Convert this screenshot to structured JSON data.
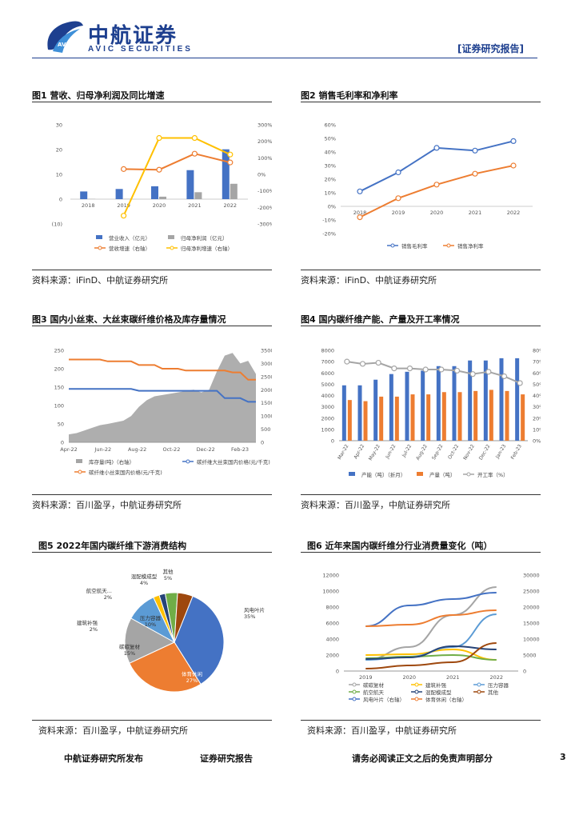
{
  "header": {
    "logo_cn": "中航证券",
    "logo_en": "AVIC SECURITIES",
    "logo_emblem": "AVIC",
    "report_type": "[证券研究报告]"
  },
  "figures": [
    {
      "title": "图1 营收、归母净利润及同比增速",
      "source": "资料来源：iFinD、中航证券研究所"
    },
    {
      "title": "图2 销售毛利率和净利率",
      "source": "资料来源：iFinD、中航证券研究所"
    },
    {
      "title": "图3 国内小丝束、大丝束碳纤维价格及库存量情况",
      "source": "资料来源：百川盈孚，中航证券研究所"
    },
    {
      "title": "图4 国内碳纤维产能、产量及开工率情况",
      "source": "资料来源：百川盈孚，中航证券研究所"
    },
    {
      "title": "图5 2022年国内碳纤维下游消费结构",
      "source": "资料来源：百川盈孚，中航证券研究所"
    },
    {
      "title": "图6 近年来国内碳纤维分行业消费量变化（吨）",
      "source": "资料来源：百川盈孚，中航证券研究所"
    }
  ],
  "footer": {
    "left": "中航证券研究所发布",
    "middle": "证券研究报告",
    "right": "请务必阅读正文之后的免责声明部分",
    "page": "3"
  },
  "chart_data": [
    {
      "type": "bar",
      "categories": [
        "2018",
        "2019",
        "2020",
        "2021",
        "2022"
      ],
      "series": [
        {
          "name": "营业收入（亿元）",
          "values": [
            3.1,
            4.1,
            5.2,
            11.7,
            20.1
          ],
          "color": "#4472c4"
        },
        {
          "name": "归母净利润（亿元）",
          "values": [
            0.1,
            0.1,
            1.0,
            2.8,
            6.2
          ],
          "color": "#a5a5a5"
        },
        {
          "name": "营收增速（右轴）",
          "values": [
            null,
            32,
            28,
            125,
            72
          ],
          "color": "#ed7d31",
          "axis": "right"
        },
        {
          "name": "归母净利增速（右轴）",
          "values": [
            null,
            -250,
            220,
            220,
            120
          ],
          "color": "#ffc000",
          "axis": "right"
        }
      ],
      "y_ticks": [
        "30",
        "20",
        "10",
        "0",
        "(10)"
      ],
      "y2_ticks": [
        "300%",
        "200%",
        "100%",
        "0%",
        "-100%",
        "-200%",
        "-300%"
      ],
      "ylim": [
        -10,
        30
      ],
      "y2lim": [
        -300,
        300
      ]
    },
    {
      "type": "line",
      "categories": [
        "2018",
        "2019",
        "2020",
        "2021",
        "2022"
      ],
      "series": [
        {
          "name": "销售毛利率",
          "values": [
            11,
            25,
            43,
            41,
            48
          ],
          "color": "#4472c4"
        },
        {
          "name": "销售净利率",
          "values": [
            -8,
            6,
            16,
            24,
            30
          ],
          "color": "#ed7d31"
        }
      ],
      "y_ticks": [
        "60%",
        "50%",
        "40%",
        "30%",
        "20%",
        "10%",
        "0%",
        "-10%",
        "-20%"
      ],
      "ylim": [
        -20,
        60
      ]
    },
    {
      "type": "area",
      "x_ticks": [
        "Apr-22",
        "Jun-22",
        "Aug-22",
        "Oct-22",
        "Dec-22",
        "Feb-23"
      ],
      "series": [
        {
          "name": "库存量(吨)（右轴）",
          "values": [
            300,
            350,
            450,
            550,
            650,
            700,
            760,
            820,
            1000,
            1350,
            1600,
            1750,
            1800,
            1850,
            1900,
            1950,
            2000,
            1900,
            2000,
            2700,
            3300,
            3400,
            3000,
            3100,
            2600
          ],
          "color": "#a5a5a5",
          "axis": "right"
        },
        {
          "name": "碳纤维大丝束国内价格(元/千克)",
          "values": [
            145,
            145,
            145,
            145,
            145,
            145,
            145,
            145,
            145,
            140,
            140,
            140,
            140,
            140,
            140,
            140,
            140,
            140,
            140,
            140,
            120,
            120,
            120,
            110,
            110
          ],
          "color": "#4472c4"
        },
        {
          "name": "碳纤维小丝束国内价格(元/千克)",
          "values": [
            225,
            225,
            225,
            225,
            225,
            220,
            220,
            220,
            220,
            210,
            210,
            210,
            200,
            200,
            200,
            195,
            195,
            195,
            195,
            195,
            195,
            190,
            190,
            170,
            170
          ],
          "color": "#ed7d31"
        }
      ],
      "y_ticks": [
        "250",
        "200",
        "150",
        "100",
        "50",
        "0"
      ],
      "y2_ticks": [
        "3500",
        "3000",
        "2500",
        "2000",
        "1500",
        "1000",
        "500",
        "0"
      ],
      "ylim": [
        0,
        250
      ],
      "y2lim": [
        0,
        3500
      ]
    },
    {
      "type": "bar",
      "categories": [
        "Mar-22",
        "Apr-22",
        "May-22",
        "Jun-22",
        "Jul-22",
        "Aug-22",
        "Sep-22",
        "Oct-22",
        "Nov-22",
        "Dec-22",
        "Jan-23",
        "Feb-23"
      ],
      "series": [
        {
          "name": "产能（吨）（折月）",
          "values": [
            4900,
            4900,
            5400,
            5900,
            6100,
            6200,
            6600,
            6600,
            7100,
            7100,
            7300,
            7300
          ],
          "color": "#4472c4"
        },
        {
          "name": "产量（吨）",
          "values": [
            3600,
            3500,
            3900,
            3900,
            4100,
            4100,
            4300,
            4300,
            4400,
            4500,
            4400,
            4100
          ],
          "color": "#ed7d31"
        },
        {
          "name": "开工率（%）",
          "values": [
            70,
            68,
            69,
            64,
            64,
            63,
            63,
            62,
            59,
            61,
            57,
            51
          ],
          "color": "#a5a5a5",
          "axis": "right"
        }
      ],
      "y_ticks": [
        "8000",
        "7000",
        "6000",
        "5000",
        "4000",
        "3000",
        "2000",
        "1000",
        "0"
      ],
      "y2_ticks": [
        "80%",
        "70%",
        "60%",
        "50%",
        "40%",
        "30%",
        "20%",
        "10%",
        "0%"
      ],
      "ylim": [
        0,
        8000
      ],
      "y2lim": [
        0,
        80
      ]
    },
    {
      "type": "pie",
      "slices": [
        {
          "name": "风电叶片",
          "percent": "35%",
          "value": 35,
          "color": "#4472c4"
        },
        {
          "name": "体育休闲",
          "percent": "27%",
          "value": 27,
          "color": "#ed7d31"
        },
        {
          "name": "碳碳复材",
          "percent": "15%",
          "value": 15,
          "color": "#a5a5a5"
        },
        {
          "name": "压力容器",
          "percent": "10%",
          "value": 10,
          "color": "#5b9bd5"
        },
        {
          "name": "建筑补强",
          "percent": "2%",
          "value": 2,
          "color": "#ffc000"
        },
        {
          "name": "航空航天...",
          "percent": "2%",
          "value": 2,
          "color": "#264478"
        },
        {
          "name": "混配模成型",
          "percent": "4%",
          "value": 4,
          "color": "#70ad47"
        },
        {
          "name": "其他",
          "percent": "5%",
          "value": 5,
          "color": "#9e480e"
        }
      ]
    },
    {
      "type": "line",
      "categories": [
        "2019",
        "2020",
        "2021",
        "2022"
      ],
      "series": [
        {
          "name": "碳碳复材",
          "values": [
            1400,
            3000,
            7000,
            10500
          ],
          "color": "#a5a5a5"
        },
        {
          "name": "建筑补强",
          "values": [
            2000,
            2100,
            2700,
            1400
          ],
          "color": "#ffc000"
        },
        {
          "name": "压力容器",
          "values": [
            1400,
            1800,
            3000,
            7100
          ],
          "color": "#5b9bd5"
        },
        {
          "name": "航空航天",
          "values": [
            1600,
            1800,
            2000,
            1400
          ],
          "color": "#70ad47"
        },
        {
          "name": "混配模成型",
          "values": [
            1500,
            1700,
            3100,
            2700
          ],
          "color": "#264478"
        },
        {
          "name": "其他",
          "values": [
            300,
            700,
            1100,
            3500
          ],
          "color": "#9e480e"
        },
        {
          "name": "风电叶片（右轴）",
          "values": [
            14000,
            20500,
            22500,
            24500
          ],
          "color": "#4472c4",
          "axis": "right"
        },
        {
          "name": "体育休闲（右轴）",
          "values": [
            14000,
            14500,
            17500,
            19000
          ],
          "color": "#ed7d31",
          "axis": "right"
        }
      ],
      "y_ticks": [
        "12000",
        "10000",
        "8000",
        "6000",
        "4000",
        "2000",
        "0"
      ],
      "y2_ticks": [
        "30000",
        "25000",
        "20000",
        "15000",
        "10000",
        "5000",
        "0"
      ],
      "ylim": [
        0,
        12000
      ],
      "y2lim": [
        0,
        30000
      ]
    }
  ]
}
